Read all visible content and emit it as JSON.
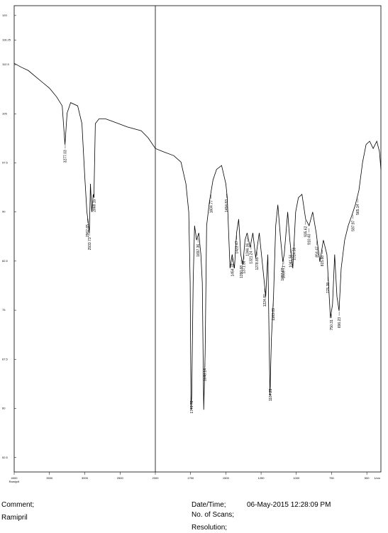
{
  "chart_data": {
    "type": "line",
    "x": [
      4000,
      3900,
      3800,
      3700,
      3600,
      3500,
      3400,
      3320,
      3280,
      3250,
      3200,
      3100,
      3040,
      3000,
      2970,
      2950,
      2935,
      2920,
      2900,
      2880,
      2870,
      2850,
      2800,
      2700,
      2600,
      2400,
      2200,
      2100,
      2000,
      1944,
      1869,
      1818,
      1783,
      1763,
      1753,
      1747,
      1742,
      1732,
      1722,
      1707,
      1692,
      1677,
      1667,
      1657,
      1647,
      1636,
      1616,
      1591,
      1566,
      1530,
      1500,
      1490,
      1470,
      1455,
      1439,
      1424,
      1409,
      1394,
      1379,
      1364,
      1349,
      1328,
      1308,
      1288,
      1263,
      1237,
      1217,
      1202,
      1187,
      1177,
      1162,
      1146,
      1131,
      1111,
      1096,
      1086,
      1061,
      1046,
      1025,
      1005,
      985,
      960,
      934,
      909,
      884,
      859,
      833,
      808,
      783,
      758,
      743,
      728,
      712,
      697,
      682,
      657,
      632,
      606,
      581,
      556,
      530,
      505,
      480,
      455,
      429,
      410,
      400
    ],
    "values": [
      112.7,
      112.1,
      111.6,
      110.7,
      109.8,
      108.9,
      107.6,
      106.2,
      100.3,
      105.1,
      106.7,
      106.2,
      103.5,
      95.4,
      90.0,
      88.4,
      86.8,
      94.3,
      90.0,
      92.7,
      92.2,
      103.5,
      104.2,
      104.2,
      103.8,
      103.0,
      102.4,
      101.3,
      99.7,
      99.2,
      98.6,
      97.6,
      94.3,
      90.0,
      79.2,
      59.8,
      62.0,
      79.2,
      87.9,
      85.7,
      86.8,
      83.5,
      79.2,
      59.8,
      68.4,
      87.9,
      91.6,
      94.9,
      96.5,
      97.1,
      94.3,
      92.2,
      81.4,
      83.5,
      81.4,
      86.8,
      88.9,
      83.5,
      81.9,
      85.7,
      86.8,
      84.6,
      86.8,
      83.0,
      86.8,
      81.4,
      77.1,
      83.5,
      62.0,
      70.6,
      77.1,
      87.9,
      91.1,
      85.7,
      82.4,
      83.5,
      90.0,
      85.7,
      81.4,
      90.0,
      92.2,
      92.7,
      88.9,
      87.9,
      90.0,
      86.8,
      82.4,
      85.7,
      83.5,
      73.8,
      75.9,
      83.5,
      77.1,
      74.9,
      81.4,
      85.7,
      87.9,
      89.5,
      91.1,
      93.3,
      97.6,
      100.3,
      100.8,
      99.7,
      100.8,
      99.2,
      96.5
    ],
    "color": "#000000",
    "xlim": [
      4000,
      400
    ],
    "xbreak": 2000,
    "xticks": [
      4000,
      3500,
      3000,
      2500,
      2000,
      1750,
      1500,
      1250,
      1000,
      750,
      500
    ],
    "x_unit": "1/cm",
    "ylim": [
      50.3,
      121.5
    ],
    "yticks": [
      52.5,
      60,
      67.5,
      75,
      82.5,
      90,
      97.5,
      105,
      112.5,
      116.25,
      120
    ],
    "sample_label": "Ramipril",
    "annotations": [
      3277.03,
      2962.65,
      2933.73,
      2868.15,
      1741.72,
      1697.36,
      1648.14,
      1604.77,
      1494.83,
      1454.33,
      1423.47,
      1390.68,
      1371.36,
      1346.36,
      1321.24,
      1278.85,
      {
        "value": 1224.8,
        "label": "1224.80"
      },
      1184.29,
      1163.09,
      {
        "value": 1097.6,
        "label": "1097.60"
      },
      1089.71,
      1041.56,
      1014.59,
      935.62,
      {
        "value": 910.4,
        "label": "910.40"
      },
      854.47,
      815.88,
      775.38,
      750.31,
      696.23,
      597.97,
      565.14
    ]
  },
  "footer": {
    "comment_label": "Comment;",
    "comment": "Ramipril",
    "datetime_label": "Date/Time;",
    "datetime": "06-May-2015 12:28:09 PM",
    "scans_label": "No. of Scans;",
    "resolution_label": "Resolution;"
  }
}
